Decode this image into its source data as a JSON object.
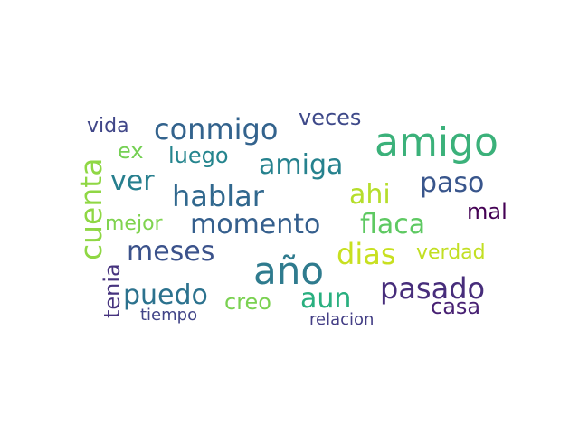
{
  "wordcloud": {
    "words": [
      {
        "text": "amigo",
        "color": "#3bb17a"
      },
      {
        "text": "año",
        "color": "#2f7b8e"
      },
      {
        "text": "conmigo",
        "color": "#33638d"
      },
      {
        "text": "hablar",
        "color": "#31688e"
      },
      {
        "text": "momento",
        "color": "#355f8d"
      },
      {
        "text": "amiga",
        "color": "#26828e"
      },
      {
        "text": "pasado",
        "color": "#472d7b"
      },
      {
        "text": "meses",
        "color": "#3b528b"
      },
      {
        "text": "cuenta",
        "color": "#8fd744"
      },
      {
        "text": "flaca",
        "color": "#5ec962"
      },
      {
        "text": "paso",
        "color": "#39568c"
      },
      {
        "text": "puedo",
        "color": "#2c728e"
      },
      {
        "text": "aun",
        "color": "#29af7f"
      },
      {
        "text": "ver",
        "color": "#277f8e"
      },
      {
        "text": "dias",
        "color": "#c8e020"
      },
      {
        "text": "ahi",
        "color": "#b5de2b"
      },
      {
        "text": "casa",
        "color": "#482173"
      },
      {
        "text": "veces",
        "color": "#3e4989"
      },
      {
        "text": "luego",
        "color": "#25858e"
      },
      {
        "text": "vida",
        "color": "#404688"
      },
      {
        "text": "creo",
        "color": "#7ad151"
      },
      {
        "text": "mejor",
        "color": "#7fd34e"
      },
      {
        "text": "verdad",
        "color": "#c2df23"
      },
      {
        "text": "tenia",
        "color": "#46337e"
      },
      {
        "text": "ex",
        "color": "#75d054"
      },
      {
        "text": "mal",
        "color": "#440154"
      },
      {
        "text": "tiempo",
        "color": "#414487"
      },
      {
        "text": "relacion",
        "color": "#433e85"
      }
    ]
  }
}
